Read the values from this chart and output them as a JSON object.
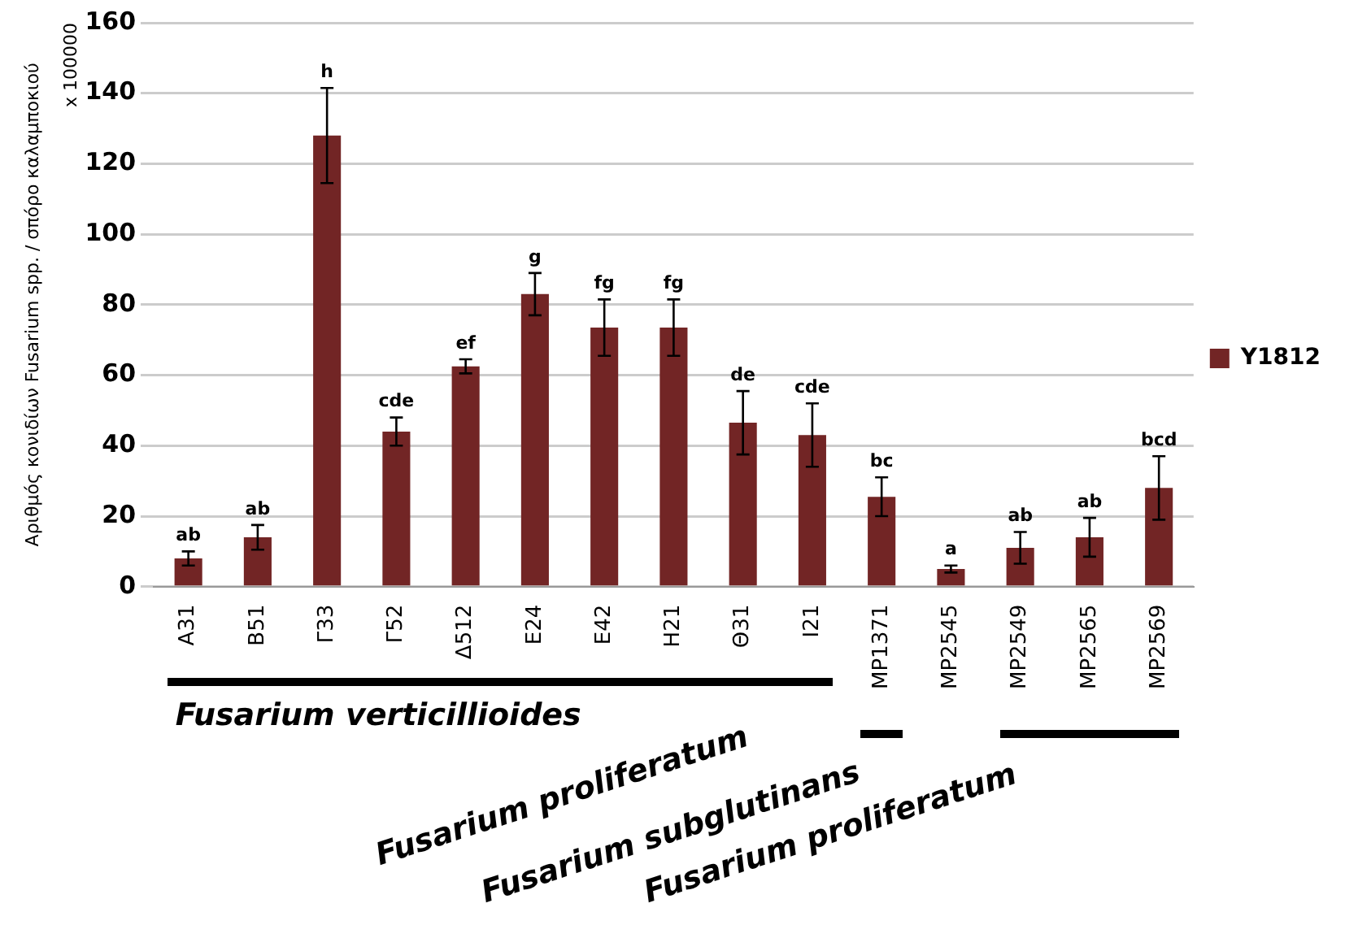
{
  "chart_data": {
    "type": "bar",
    "ylabel": "Αριθμός κονιδίων Fusarium spp. / σπόρο καλαμποκιού",
    "categories": [
      "A31",
      "B51",
      "Γ33",
      "Γ52",
      "Δ512",
      "E24",
      "E42",
      "H21",
      "Θ31",
      "I21",
      "MP1371",
      "MP2545",
      "MP2549",
      "MP2565",
      "MP2569"
    ],
    "series": [
      {
        "name": "Y1812",
        "color": "#722525",
        "values": [
          8,
          14,
          128,
          44,
          62.5,
          83,
          73.5,
          73.5,
          46.5,
          43,
          25.5,
          5,
          11,
          14,
          28
        ],
        "errors": [
          2,
          3.5,
          13.5,
          4,
          2,
          6,
          8,
          8,
          9,
          9,
          5.5,
          1,
          4.5,
          5.5,
          9
        ],
        "value_labels": [
          "ab",
          "ab",
          "h",
          "cde",
          "ef",
          "g",
          "fg",
          "fg",
          "de",
          "cde",
          "bc",
          "a",
          "ab",
          "ab",
          "bcd"
        ]
      }
    ],
    "ylim": [
      0,
      160
    ],
    "yticks": [
      0,
      20,
      40,
      60,
      80,
      100,
      120,
      140,
      160
    ],
    "grid": "y",
    "legend": "right",
    "annotations": [
      "x 100000",
      "Fusarium verticillioides",
      "Fusarium proliferatum",
      "Fusarium subglutinans",
      "Fusarium proliferatum"
    ]
  }
}
